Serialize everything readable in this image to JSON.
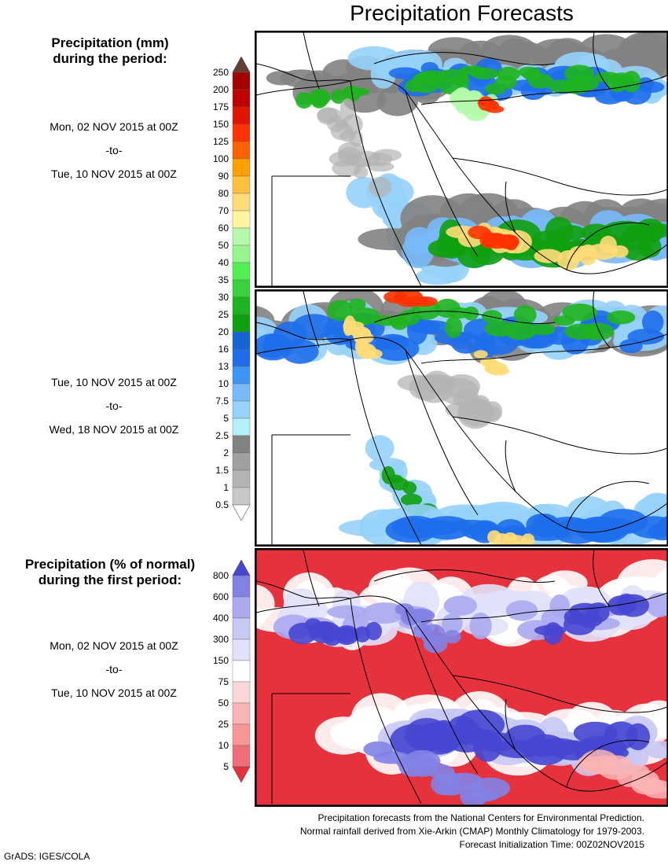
{
  "title": "Precipitation Forecasts",
  "panel_top": {
    "heading_line1": "Precipitation (mm)",
    "heading_line2": "during the period:",
    "period1": {
      "start": "Mon, 02 NOV 2015 at 00Z",
      "sep": "-to-",
      "end": "Tue, 10 NOV 2015 at 00Z"
    },
    "period2": {
      "start": "Tue, 10 NOV 2015 at 00Z",
      "sep": "-to-",
      "end": "Wed, 18 NOV 2015 at 00Z"
    }
  },
  "panel_bottom": {
    "heading_line1": "Precipitation (% of normal)",
    "heading_line2": "during the first period:",
    "period": {
      "start": "Mon, 02 NOV 2015 at 00Z",
      "sep": "-to-",
      "end": "Tue, 10 NOV 2015 at 00Z"
    }
  },
  "footer": {
    "line1": "Precipitation forecasts from the National Centers for Environmental Prediction.",
    "line2": "Normal rainfall derived from Xie-Arkin (CMAP) Monthly Climatology for 1979-2003.",
    "line3": "Forecast Initialization Time: 00Z02NOV2015",
    "credit": "GrADS: IGES/COLA"
  },
  "chart_data": [
    {
      "type": "heatmap",
      "title": "Precipitation Forecasts",
      "units": "mm",
      "period": "Mon, 02 NOV 2015 at 00Z -to- Tue, 10 NOV 2015 at 00Z",
      "colorbar": {
        "levels": [
          "0.5",
          "1",
          "1.5",
          "2",
          "2.5",
          "5",
          "7.5",
          "10",
          "13",
          "16",
          "20",
          "25",
          "30",
          "35",
          "40",
          "50",
          "60",
          "70",
          "80",
          "90",
          "100",
          "125",
          "150",
          "175",
          "200",
          "250"
        ],
        "colors": [
          "#ffffff",
          "#c8c8c8",
          "#b4b4b4",
          "#a0a0a0",
          "#828282",
          "#b4f0fa",
          "#96d2fa",
          "#78b9fa",
          "#3c96f5",
          "#1e6eeb",
          "#1464d2",
          "#0fa00f",
          "#1eb41e",
          "#37d23c",
          "#50f050",
          "#96f58c",
          "#b4faaa",
          "#fff5a0",
          "#ffdc78",
          "#ffc03c",
          "#ffa000",
          "#ff6000",
          "#ff3200",
          "#e11400",
          "#c00000",
          "#a50000",
          "#643c32"
        ]
      }
    },
    {
      "type": "heatmap",
      "units": "mm",
      "period": "Tue, 10 NOV 2015 at 00Z -to- Wed, 18 NOV 2015 at 00Z"
    },
    {
      "type": "heatmap",
      "units": "% of normal",
      "period": "Mon, 02 NOV 2015 at 00Z -to- Tue, 10 NOV 2015 at 00Z",
      "colorbar": {
        "levels": [
          "5",
          "10",
          "25",
          "50",
          "75",
          "150",
          "300",
          "400",
          "600",
          "800"
        ],
        "colors": [
          "#e6323c",
          "#f06e78",
          "#fa9696",
          "#fab4b4",
          "#fcd7d7",
          "#ffffff",
          "#e1e1fa",
          "#c8c8f5",
          "#aaaaf0",
          "#8282e6",
          "#4646d2"
        ]
      }
    }
  ],
  "colors": {
    "land_bg": "#ffffff",
    "border": "#000000"
  }
}
